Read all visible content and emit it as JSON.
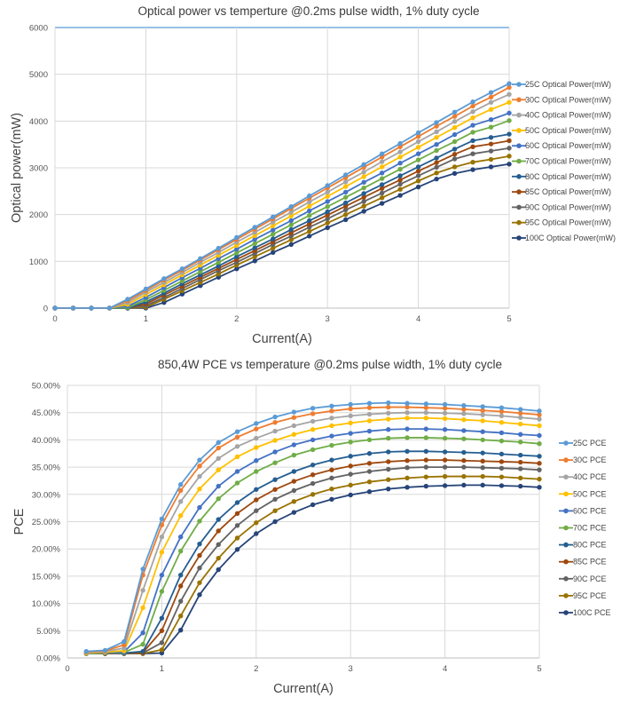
{
  "charts": [
    {
      "id": "chart1",
      "type": "line",
      "title": "Optical power vs temperture @0.2ms pulse width, 1% duty cycle",
      "xlabel": "Current(A)",
      "ylabel": "Optical power(mW)",
      "xlim": [
        0,
        5
      ],
      "ylim": [
        0,
        6000
      ],
      "xticks": [
        "0",
        "1",
        "2",
        "3",
        "4",
        "5"
      ],
      "yticks": [
        "0",
        "1000",
        "2000",
        "3000",
        "4000",
        "5000",
        "6000"
      ],
      "grid": true,
      "legend_position": "right",
      "x": [
        0,
        0.2,
        0.4,
        0.6,
        0.8,
        1.0,
        1.2,
        1.4,
        1.6,
        1.8,
        2.0,
        2.2,
        2.4,
        2.6,
        2.8,
        3.0,
        3.2,
        3.4,
        3.6,
        3.8,
        4.0,
        4.2,
        4.4,
        4.6,
        4.8,
        5.0
      ],
      "series": [
        {
          "name": "25C Optical Power(mW)",
          "color": "#5b9bd5",
          "values": [
            0,
            0,
            0,
            0,
            190,
            410,
            630,
            840,
            1060,
            1280,
            1510,
            1730,
            1950,
            2170,
            2400,
            2620,
            2850,
            3070,
            3300,
            3520,
            3750,
            3970,
            4190,
            4410,
            4610,
            4800
          ]
        },
        {
          "name": "30C Optical Power(mW)",
          "color": "#ed7d31",
          "values": [
            0,
            0,
            0,
            0,
            160,
            380,
            600,
            810,
            1030,
            1250,
            1470,
            1690,
            1910,
            2130,
            2350,
            2570,
            2790,
            3010,
            3230,
            3450,
            3670,
            3890,
            4100,
            4320,
            4510,
            4720
          ]
        },
        {
          "name": "40C Optical Power(mW)",
          "color": "#a5a5a5",
          "values": [
            0,
            0,
            0,
            0,
            120,
            340,
            550,
            760,
            980,
            1190,
            1410,
            1620,
            1840,
            2050,
            2270,
            2480,
            2700,
            2910,
            3130,
            3340,
            3560,
            3770,
            3990,
            4200,
            4400,
            4570
          ]
        },
        {
          "name": "50C Optical Power(mW)",
          "color": "#ffc000",
          "values": [
            0,
            0,
            0,
            0,
            80,
            290,
            500,
            710,
            920,
            1130,
            1340,
            1550,
            1760,
            1970,
            2180,
            2390,
            2600,
            2810,
            3020,
            3230,
            3440,
            3650,
            3860,
            4070,
            4250,
            4400
          ]
        },
        {
          "name": "60C Optical Power(mW)",
          "color": "#4472c4",
          "values": [
            0,
            0,
            0,
            0,
            40,
            230,
            440,
            650,
            850,
            1060,
            1260,
            1470,
            1670,
            1870,
            2080,
            2280,
            2480,
            2690,
            2890,
            3100,
            3300,
            3500,
            3710,
            3910,
            4030,
            4170
          ]
        },
        {
          "name": "70C Optical Power(mW)",
          "color": "#70ad47",
          "values": [
            0,
            0,
            0,
            0,
            10,
            180,
            380,
            580,
            780,
            980,
            1180,
            1380,
            1580,
            1780,
            1980,
            2170,
            2370,
            2570,
            2770,
            2970,
            3170,
            3370,
            3560,
            3760,
            3870,
            4010
          ]
        },
        {
          "name": "80C Optical Power(mW)",
          "color": "#255e91",
          "values": [
            0,
            0,
            0,
            0,
            0,
            130,
            320,
            520,
            710,
            900,
            1100,
            1290,
            1480,
            1680,
            1870,
            2060,
            2250,
            2450,
            2640,
            2830,
            3020,
            3210,
            3400,
            3580,
            3650,
            3720
          ]
        },
        {
          "name": "85C Optical Power(mW)",
          "color": "#9e480e",
          "values": [
            0,
            0,
            0,
            0,
            0,
            90,
            280,
            470,
            660,
            850,
            1040,
            1230,
            1420,
            1610,
            1800,
            1990,
            2180,
            2370,
            2560,
            2740,
            2930,
            3110,
            3290,
            3450,
            3510,
            3580
          ]
        },
        {
          "name": "90C Optical Power(mW)",
          "color": "#636363",
          "values": [
            0,
            0,
            0,
            0,
            0,
            50,
            230,
            420,
            610,
            800,
            980,
            1170,
            1360,
            1540,
            1730,
            1910,
            2100,
            2280,
            2460,
            2650,
            2830,
            3010,
            3190,
            3300,
            3360,
            3420
          ]
        },
        {
          "name": "95C Optical Power(mW)",
          "color": "#997300",
          "values": [
            0,
            0,
            0,
            0,
            0,
            20,
            190,
            370,
            550,
            730,
            920,
            1100,
            1280,
            1460,
            1640,
            1820,
            2000,
            2180,
            2360,
            2540,
            2720,
            2890,
            3020,
            3120,
            3180,
            3250
          ]
        },
        {
          "name": "100C Optical Power(mW)",
          "color": "#264478",
          "values": [
            0,
            0,
            0,
            0,
            0,
            0,
            120,
            300,
            480,
            660,
            840,
            1010,
            1190,
            1360,
            1540,
            1720,
            1890,
            2070,
            2240,
            2410,
            2590,
            2760,
            2880,
            2960,
            3020,
            3080
          ]
        }
      ]
    },
    {
      "id": "chart2",
      "type": "line",
      "title": "850,4W PCE vs temperature @0.2ms pulse width, 1% duty cycle",
      "xlabel": "Current(A)",
      "ylabel": "PCE",
      "xlim": [
        0,
        5
      ],
      "ylim": [
        0,
        0.5
      ],
      "xticks": [
        "0",
        "1",
        "2",
        "3",
        "4",
        "5"
      ],
      "yticks": [
        "0.00%",
        "5.00%",
        "10.00%",
        "15.00%",
        "20.00%",
        "25.00%",
        "30.00%",
        "35.00%",
        "40.00%",
        "45.00%",
        "50.00%"
      ],
      "grid": true,
      "legend_position": "right",
      "x": [
        0.2,
        0.4,
        0.6,
        0.8,
        1.0,
        1.2,
        1.4,
        1.6,
        1.8,
        2.0,
        2.2,
        2.4,
        2.6,
        2.8,
        3.0,
        3.2,
        3.4,
        3.6,
        3.8,
        4.0,
        4.2,
        4.4,
        4.6,
        4.8,
        5.0
      ],
      "series": [
        {
          "name": "25C PCE",
          "color": "#5b9bd5",
          "values": [
            0.012,
            0.014,
            0.03,
            0.163,
            0.255,
            0.318,
            0.363,
            0.395,
            0.415,
            0.43,
            0.442,
            0.451,
            0.458,
            0.462,
            0.465,
            0.467,
            0.468,
            0.467,
            0.466,
            0.465,
            0.463,
            0.461,
            0.459,
            0.456,
            0.453
          ]
        },
        {
          "name": "30C PCE",
          "color": "#ed7d31",
          "values": [
            0.011,
            0.013,
            0.024,
            0.152,
            0.244,
            0.307,
            0.352,
            0.385,
            0.405,
            0.42,
            0.432,
            0.441,
            0.448,
            0.453,
            0.457,
            0.459,
            0.46,
            0.46,
            0.459,
            0.458,
            0.456,
            0.454,
            0.452,
            0.449,
            0.446
          ]
        },
        {
          "name": "40C PCE",
          "color": "#a5a5a5",
          "values": [
            0.01,
            0.012,
            0.018,
            0.124,
            0.222,
            0.287,
            0.333,
            0.366,
            0.388,
            0.403,
            0.416,
            0.426,
            0.434,
            0.44,
            0.444,
            0.447,
            0.449,
            0.45,
            0.45,
            0.449,
            0.448,
            0.446,
            0.444,
            0.441,
            0.438
          ]
        },
        {
          "name": "50C PCE",
          "color": "#ffc000",
          "values": [
            0.009,
            0.011,
            0.013,
            0.092,
            0.194,
            0.261,
            0.31,
            0.345,
            0.369,
            0.386,
            0.399,
            0.41,
            0.419,
            0.426,
            0.431,
            0.435,
            0.438,
            0.44,
            0.44,
            0.439,
            0.437,
            0.435,
            0.432,
            0.429,
            0.426
          ]
        },
        {
          "name": "60C PCE",
          "color": "#4472c4",
          "values": [
            0.009,
            0.01,
            0.011,
            0.046,
            0.152,
            0.222,
            0.276,
            0.315,
            0.342,
            0.362,
            0.378,
            0.391,
            0.4,
            0.407,
            0.412,
            0.416,
            0.419,
            0.42,
            0.42,
            0.419,
            0.417,
            0.415,
            0.413,
            0.41,
            0.408
          ]
        },
        {
          "name": "70C PCE",
          "color": "#70ad47",
          "values": [
            0.008,
            0.009,
            0.01,
            0.025,
            0.122,
            0.196,
            0.251,
            0.292,
            0.321,
            0.342,
            0.358,
            0.372,
            0.382,
            0.39,
            0.396,
            0.4,
            0.403,
            0.404,
            0.404,
            0.403,
            0.402,
            0.4,
            0.398,
            0.396,
            0.393
          ]
        },
        {
          "name": "80C PCE",
          "color": "#255e91",
          "values": [
            0.008,
            0.009,
            0.009,
            0.012,
            0.073,
            0.152,
            0.209,
            0.254,
            0.285,
            0.309,
            0.327,
            0.342,
            0.354,
            0.363,
            0.37,
            0.375,
            0.378,
            0.379,
            0.379,
            0.378,
            0.377,
            0.376,
            0.374,
            0.372,
            0.37
          ]
        },
        {
          "name": "85C PCE",
          "color": "#9e480e",
          "values": [
            0.008,
            0.008,
            0.009,
            0.01,
            0.05,
            0.132,
            0.188,
            0.233,
            0.265,
            0.29,
            0.309,
            0.324,
            0.336,
            0.345,
            0.352,
            0.357,
            0.36,
            0.362,
            0.363,
            0.363,
            0.362,
            0.361,
            0.36,
            0.359,
            0.357
          ]
        },
        {
          "name": "90C PCE",
          "color": "#636363",
          "values": [
            0.008,
            0.008,
            0.008,
            0.009,
            0.028,
            0.104,
            0.165,
            0.208,
            0.243,
            0.27,
            0.291,
            0.307,
            0.32,
            0.33,
            0.337,
            0.342,
            0.346,
            0.349,
            0.35,
            0.35,
            0.35,
            0.349,
            0.348,
            0.347,
            0.345
          ]
        },
        {
          "name": "95C PCE",
          "color": "#997300",
          "values": [
            0.008,
            0.008,
            0.008,
            0.008,
            0.015,
            0.077,
            0.138,
            0.183,
            0.22,
            0.248,
            0.27,
            0.287,
            0.3,
            0.31,
            0.317,
            0.323,
            0.327,
            0.33,
            0.332,
            0.333,
            0.333,
            0.333,
            0.332,
            0.33,
            0.328
          ]
        },
        {
          "name": "100C PCE",
          "color": "#264478",
          "values": [
            0.008,
            0.008,
            0.008,
            0.008,
            0.009,
            0.051,
            0.116,
            0.162,
            0.199,
            0.228,
            0.25,
            0.267,
            0.281,
            0.291,
            0.299,
            0.305,
            0.31,
            0.313,
            0.315,
            0.316,
            0.317,
            0.317,
            0.316,
            0.315,
            0.313
          ]
        }
      ]
    }
  ]
}
